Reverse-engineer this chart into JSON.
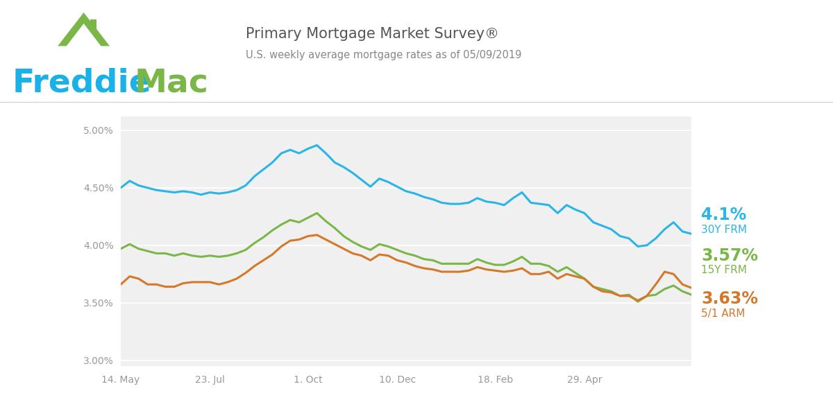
{
  "title_main": "Primary Mortgage Market Survey®",
  "title_sub": "U.S. weekly average mortgage rates as of 05/09/2019",
  "freddie_color": "#1ab0e8",
  "mac_color": "#7ab648",
  "bg_color": "#ffffff",
  "plot_bg_color": "#f0f0f0",
  "grid_color": "#ffffff",
  "x_tick_labels": [
    "14. May",
    "23. Jul",
    "1. Oct",
    "10. Dec",
    "18. Feb",
    "29. Apr"
  ],
  "x_tick_positions": [
    0,
    10,
    21,
    31,
    42,
    52
  ],
  "y_ticks": [
    3.0,
    3.5,
    4.0,
    4.5,
    5.0
  ],
  "ylim_lo": 2.95,
  "ylim_hi": 5.12,
  "label_30y": "4.1%",
  "label_30y_sub": "30Y FRM",
  "label_15y": "3.57%",
  "label_15y_sub": "15Y FRM",
  "label_arm": "3.63%",
  "label_arm_sub": "5/1 ARM",
  "color_30y": "#29b5e8",
  "color_15y": "#7ab648",
  "color_arm": "#d4782a",
  "line_width": 2.2,
  "y_30frm": [
    4.5,
    4.56,
    4.52,
    4.5,
    4.48,
    4.47,
    4.46,
    4.47,
    4.46,
    4.44,
    4.46,
    4.45,
    4.46,
    4.48,
    4.52,
    4.6,
    4.66,
    4.72,
    4.8,
    4.83,
    4.8,
    4.84,
    4.87,
    4.8,
    4.72,
    4.68,
    4.63,
    4.57,
    4.51,
    4.58,
    4.55,
    4.51,
    4.47,
    4.45,
    4.42,
    4.4,
    4.37,
    4.36,
    4.36,
    4.37,
    4.41,
    4.38,
    4.37,
    4.35,
    4.41,
    4.46,
    4.37,
    4.36,
    4.35,
    4.28,
    4.35,
    4.31,
    4.28,
    4.2,
    4.17,
    4.14,
    4.08,
    4.06,
    3.99,
    4.0,
    4.06,
    4.14,
    4.2,
    4.12,
    4.1
  ],
  "y_15frm": [
    3.97,
    4.01,
    3.97,
    3.95,
    3.93,
    3.93,
    3.91,
    3.93,
    3.91,
    3.9,
    3.91,
    3.9,
    3.91,
    3.93,
    3.96,
    4.02,
    4.07,
    4.13,
    4.18,
    4.22,
    4.2,
    4.24,
    4.28,
    4.21,
    4.15,
    4.08,
    4.03,
    3.99,
    3.96,
    4.01,
    3.99,
    3.96,
    3.93,
    3.91,
    3.88,
    3.87,
    3.84,
    3.84,
    3.84,
    3.84,
    3.88,
    3.85,
    3.83,
    3.83,
    3.86,
    3.9,
    3.84,
    3.84,
    3.82,
    3.77,
    3.81,
    3.76,
    3.71,
    3.64,
    3.62,
    3.6,
    3.56,
    3.57,
    3.51,
    3.56,
    3.57,
    3.62,
    3.65,
    3.6,
    3.57
  ],
  "y_arm": [
    3.66,
    3.73,
    3.71,
    3.66,
    3.66,
    3.64,
    3.64,
    3.67,
    3.68,
    3.68,
    3.68,
    3.66,
    3.68,
    3.71,
    3.76,
    3.82,
    3.87,
    3.92,
    3.99,
    4.04,
    4.05,
    4.08,
    4.09,
    4.05,
    4.01,
    3.97,
    3.93,
    3.91,
    3.87,
    3.92,
    3.91,
    3.87,
    3.85,
    3.82,
    3.8,
    3.79,
    3.77,
    3.77,
    3.77,
    3.78,
    3.81,
    3.79,
    3.78,
    3.77,
    3.78,
    3.8,
    3.75,
    3.75,
    3.77,
    3.71,
    3.75,
    3.73,
    3.71,
    3.64,
    3.6,
    3.59,
    3.56,
    3.56,
    3.52,
    3.56,
    3.66,
    3.77,
    3.75,
    3.66,
    3.63
  ]
}
